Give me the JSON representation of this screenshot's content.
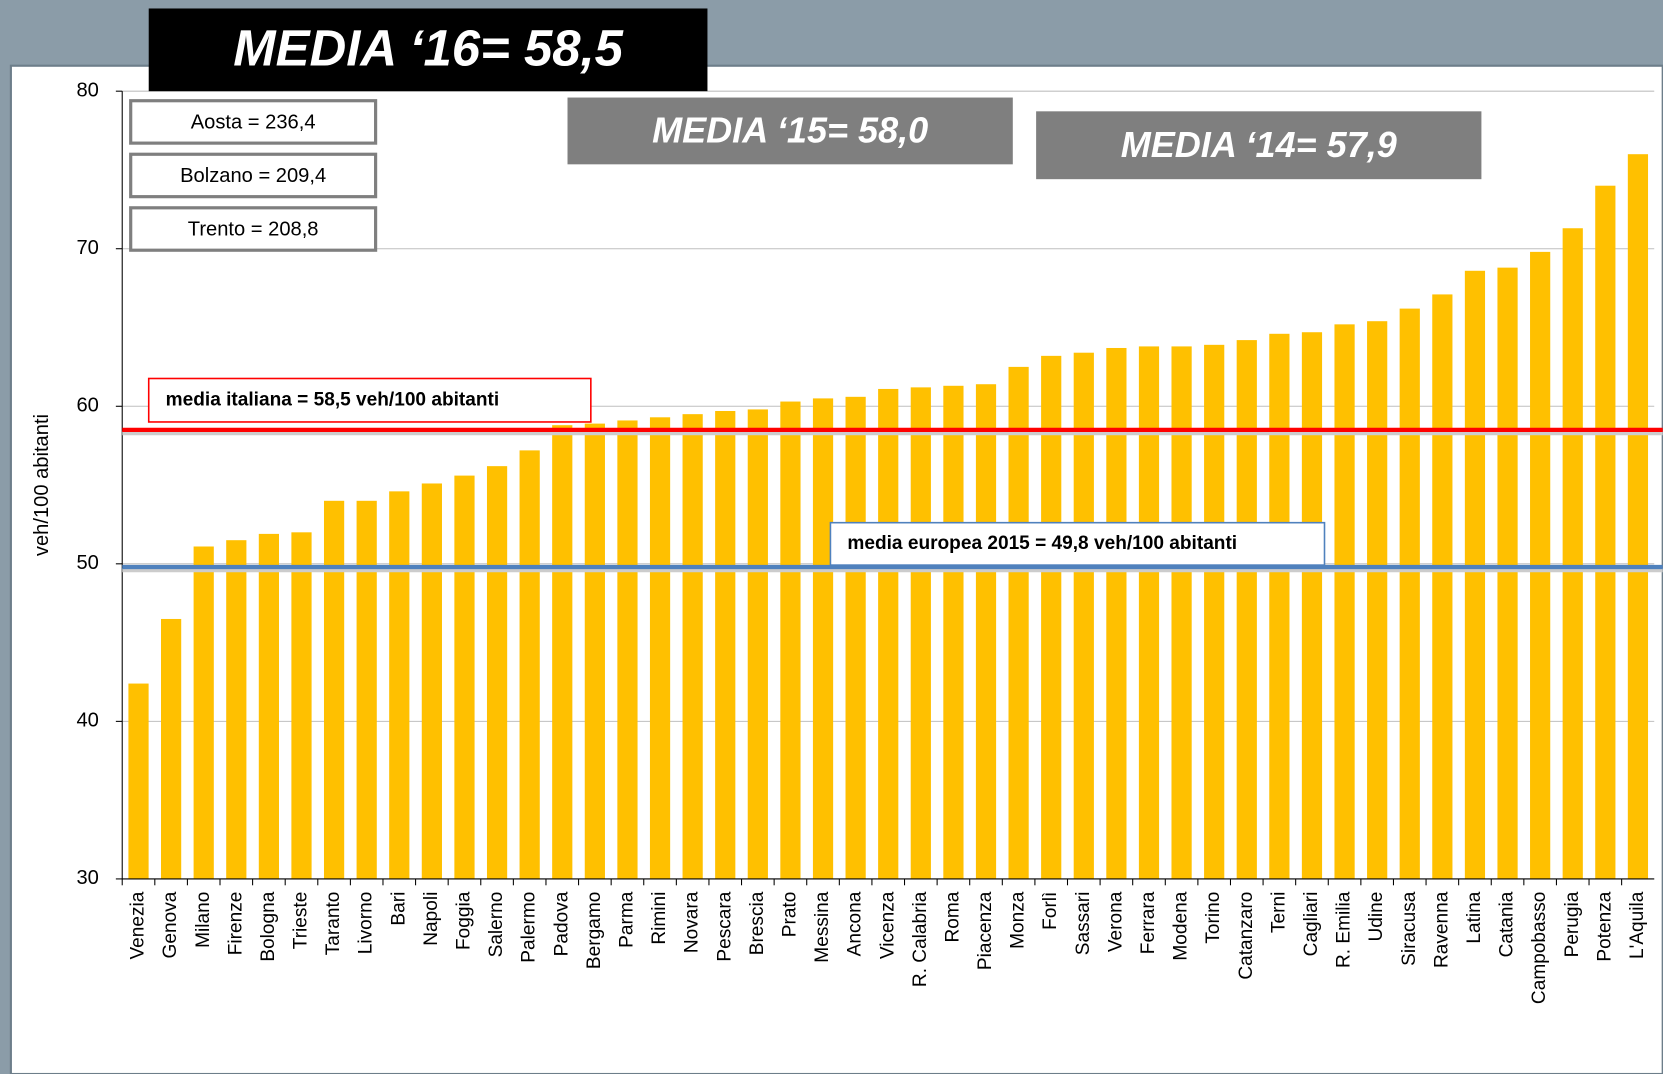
{
  "chart_data": {
    "type": "bar",
    "headers": [
      {
        "text": "MEDIA ‘16= 58,5",
        "style": "black"
      },
      {
        "text": "MEDIA ‘15= 58,0",
        "style": "gray"
      },
      {
        "text": "MEDIA ‘14= 57,9",
        "style": "gray"
      }
    ],
    "annotations": [
      "Aosta = 236,4",
      "Bolzano = 209,4",
      "Trento = 208,8"
    ],
    "y_label": "veh/100 abitanti",
    "categories": [
      "Venezia",
      "Genova",
      "Milano",
      "Firenze",
      "Bologna",
      "Trieste",
      "Taranto",
      "Livorno",
      "Bari",
      "Napoli",
      "Foggia",
      "Salerno",
      "Palermo",
      "Padova",
      "Bergamo",
      "Parma",
      "Rimini",
      "Novara",
      "Pescara",
      "Brescia",
      "Prato",
      "Messina",
      "Ancona",
      "Vicenza",
      "R. Calabria",
      "Roma",
      "Piacenza",
      "Monza",
      "Forlì",
      "Sassari",
      "Verona",
      "Ferrara",
      "Modena",
      "Torino",
      "Catanzaro",
      "Terni",
      "Cagliari",
      "R. Emilia",
      "Udine",
      "Siracusa",
      "Ravenna",
      "Latina",
      "Catania",
      "Campobasso",
      "Perugia",
      "Potenza",
      "L'Aquila"
    ],
    "values": [
      42.4,
      46.5,
      51.1,
      51.5,
      51.9,
      52.0,
      54.0,
      54.0,
      54.6,
      55.1,
      55.6,
      56.2,
      57.2,
      58.8,
      58.9,
      59.1,
      59.3,
      59.5,
      59.7,
      59.8,
      60.3,
      60.5,
      60.6,
      61.1,
      61.2,
      61.3,
      61.4,
      62.5,
      63.2,
      63.4,
      63.7,
      63.8,
      63.8,
      63.9,
      64.2,
      64.6,
      64.7,
      65.2,
      65.4,
      66.2,
      67.1,
      68.6,
      68.8,
      69.8,
      71.3,
      74.0,
      76.0
    ],
    "color": "#ffc000",
    "ylim": [
      30,
      80
    ],
    "yticks": [
      30,
      40,
      50,
      60,
      70,
      80
    ],
    "grid": true,
    "reference_lines": [
      {
        "label": "media italiana = 58,5 veh/100 abitanti",
        "value": 58.5,
        "color": "#ff0000"
      },
      {
        "label": "media europea 2015 = 49,8 veh/100 abitanti",
        "value": 49.8,
        "color": "#4f81bd"
      }
    ]
  }
}
